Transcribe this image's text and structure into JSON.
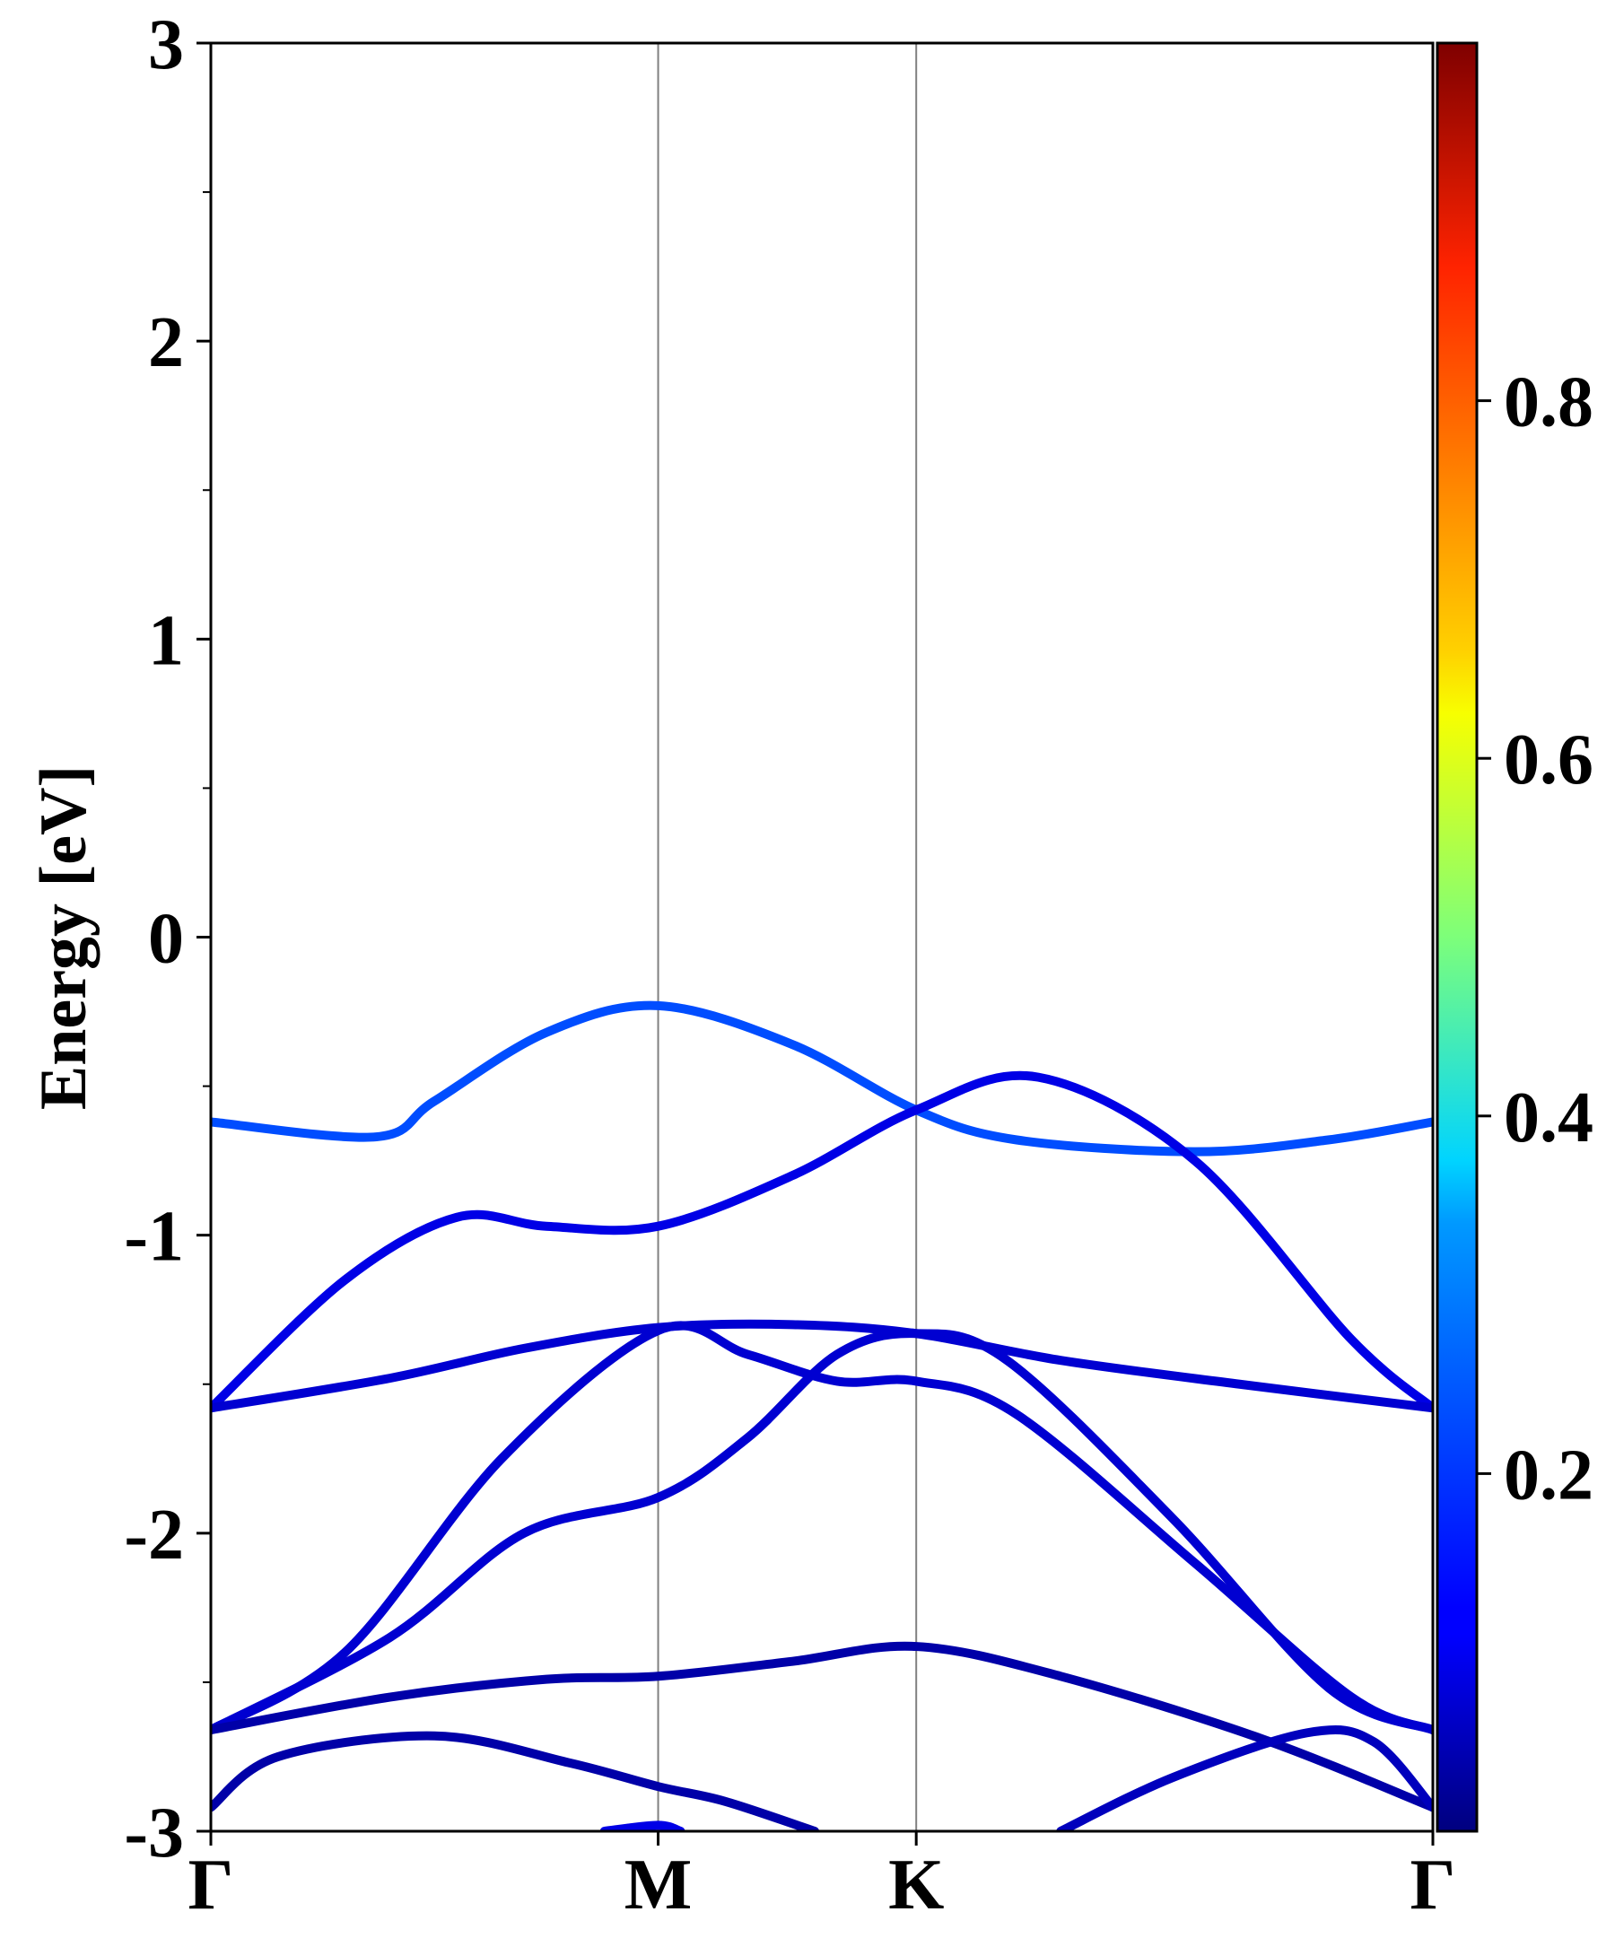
{
  "chart_data": {
    "type": "line",
    "title": "",
    "xlabel": "",
    "ylabel": "Energy [eV]",
    "ylim": [
      -3,
      3
    ],
    "y_ticks": [
      "-3",
      "-2",
      "-1",
      "0",
      "1",
      "2",
      "3"
    ],
    "y_tick_values": [
      -3,
      -2,
      -1,
      0,
      1,
      2,
      3
    ],
    "k_points": [
      {
        "label": "Γ",
        "x": 0
      },
      {
        "label": "M",
        "x": 1
      },
      {
        "label": "K",
        "x": 1.577
      },
      {
        "label": "Γ",
        "x": 2.732
      }
    ],
    "xlim": [
      0,
      2.732
    ],
    "grid": false,
    "colorbar": {
      "colormap": "jet",
      "range": [
        0,
        1
      ],
      "ticks": [
        "0.2",
        "0.4",
        "0.6",
        "0.8"
      ],
      "tick_values": [
        0.2,
        0.4,
        0.6,
        0.8
      ]
    },
    "series": [
      {
        "values": [
          [
            0,
            -0.62
          ],
          [
            0.37,
            -0.67
          ],
          [
            0.5,
            -0.55
          ],
          [
            0.75,
            -0.32
          ],
          [
            1,
            -0.23
          ],
          [
            1.3,
            -0.36
          ],
          [
            1.577,
            -0.58
          ],
          [
            1.8,
            -0.68
          ],
          [
            2.2,
            -0.72
          ],
          [
            2.5,
            -0.68
          ],
          [
            2.732,
            -0.62
          ]
        ],
        "weight": 0.2
      },
      {
        "values": [
          [
            0,
            -1.58
          ],
          [
            0.3,
            -1.15
          ],
          [
            0.55,
            -0.94
          ],
          [
            0.75,
            -0.97
          ],
          [
            1,
            -0.97
          ],
          [
            1.3,
            -0.8
          ],
          [
            1.577,
            -0.58
          ],
          [
            1.85,
            -0.47
          ],
          [
            2.2,
            -0.75
          ],
          [
            2.55,
            -1.35
          ],
          [
            2.732,
            -1.58
          ]
        ],
        "weight": 0.1
      },
      {
        "values": [
          [
            0,
            -1.58
          ],
          [
            0.4,
            -1.48
          ],
          [
            0.7,
            -1.38
          ],
          [
            1,
            -1.31
          ],
          [
            1.3,
            -1.3
          ],
          [
            1.577,
            -1.33
          ],
          [
            1.9,
            -1.42
          ],
          [
            2.3,
            -1.5
          ],
          [
            2.732,
            -1.58
          ]
        ],
        "weight": 0.08
      },
      {
        "values": [
          [
            0,
            -2.66
          ],
          [
            0.3,
            -2.4
          ],
          [
            0.65,
            -1.75
          ],
          [
            1,
            -1.32
          ],
          [
            1.2,
            -1.4
          ],
          [
            1.4,
            -1.49
          ],
          [
            1.577,
            -1.49
          ],
          [
            1.8,
            -1.6
          ],
          [
            2.2,
            -2.1
          ],
          [
            2.55,
            -2.55
          ],
          [
            2.732,
            -2.66
          ]
        ],
        "weight": 0.08
      },
      {
        "values": [
          [
            0,
            -2.66
          ],
          [
            0.4,
            -2.35
          ],
          [
            0.7,
            -2.0
          ],
          [
            1,
            -1.88
          ],
          [
            1.2,
            -1.68
          ],
          [
            1.4,
            -1.4
          ],
          [
            1.577,
            -1.33
          ],
          [
            1.78,
            -1.42
          ],
          [
            2.15,
            -1.95
          ],
          [
            2.5,
            -2.52
          ],
          [
            2.732,
            -2.66
          ]
        ],
        "weight": 0.08
      },
      {
        "values": [
          [
            0,
            -2.66
          ],
          [
            0.4,
            -2.55
          ],
          [
            0.75,
            -2.49
          ],
          [
            1,
            -2.48
          ],
          [
            1.3,
            -2.43
          ],
          [
            1.577,
            -2.38
          ],
          [
            1.9,
            -2.48
          ],
          [
            2.35,
            -2.69
          ],
          [
            2.732,
            -2.92
          ]
        ],
        "weight": 0.04
      },
      {
        "values": [
          [
            0,
            -2.92
          ],
          [
            0.15,
            -2.75
          ],
          [
            0.5,
            -2.68
          ],
          [
            0.8,
            -2.77
          ],
          [
            1,
            -2.85
          ],
          [
            1.15,
            -2.9
          ],
          [
            1.35,
            -3.0
          ]
        ],
        "weight": 0.04
      },
      {
        "values": [
          [
            1.9,
            -3.0
          ],
          [
            2.15,
            -2.82
          ],
          [
            2.45,
            -2.67
          ],
          [
            2.6,
            -2.7
          ],
          [
            2.732,
            -2.92
          ]
        ],
        "weight": 0.06
      },
      {
        "values": [
          [
            0.88,
            -3.0
          ],
          [
            1,
            -2.98
          ],
          [
            1.05,
            -3.0
          ]
        ],
        "weight": 0.1
      }
    ]
  }
}
